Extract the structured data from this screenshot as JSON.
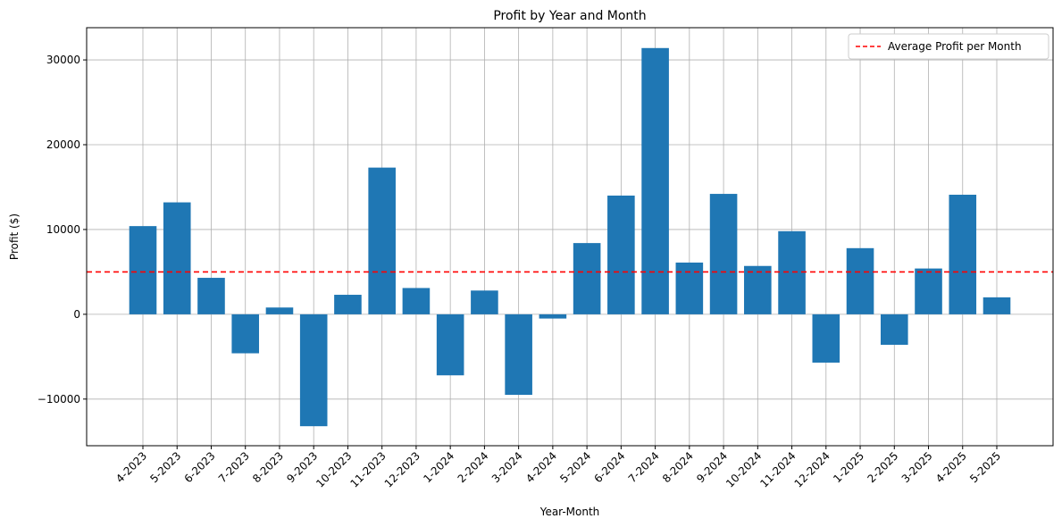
{
  "chart_data": {
    "type": "bar",
    "title": "Profit by Year and Month",
    "xlabel": "Year-Month",
    "ylabel": "Profit ($)",
    "ylim": [
      -15500,
      33800
    ],
    "yticks": [
      -10000,
      0,
      10000,
      20000,
      30000
    ],
    "ytick_labels": [
      "−10000",
      "0",
      "10000",
      "20000",
      "30000"
    ],
    "grid": true,
    "legend_position": "top-right",
    "bar_color": "#1f77b4",
    "categories": [
      "4-2023",
      "5-2023",
      "6-2023",
      "7-2023",
      "8-2023",
      "9-2023",
      "10-2023",
      "11-2023",
      "12-2023",
      "1-2024",
      "2-2024",
      "3-2024",
      "4-2024",
      "5-2024",
      "6-2024",
      "7-2024",
      "8-2024",
      "9-2024",
      "10-2024",
      "11-2024",
      "12-2024",
      "1-2025",
      "2-2025",
      "3-2025",
      "4-2025",
      "5-2025"
    ],
    "values": [
      10400,
      13200,
      4300,
      -4600,
      800,
      -13200,
      2300,
      17300,
      3100,
      -7200,
      2800,
      -9500,
      -500,
      8400,
      14000,
      31400,
      6100,
      14200,
      5700,
      9800,
      -5700,
      7800,
      -3600,
      5400,
      14100,
      2000
    ],
    "average_line": {
      "label": "Average Profit per Month",
      "value": 5000,
      "color": "#ff0000"
    }
  }
}
